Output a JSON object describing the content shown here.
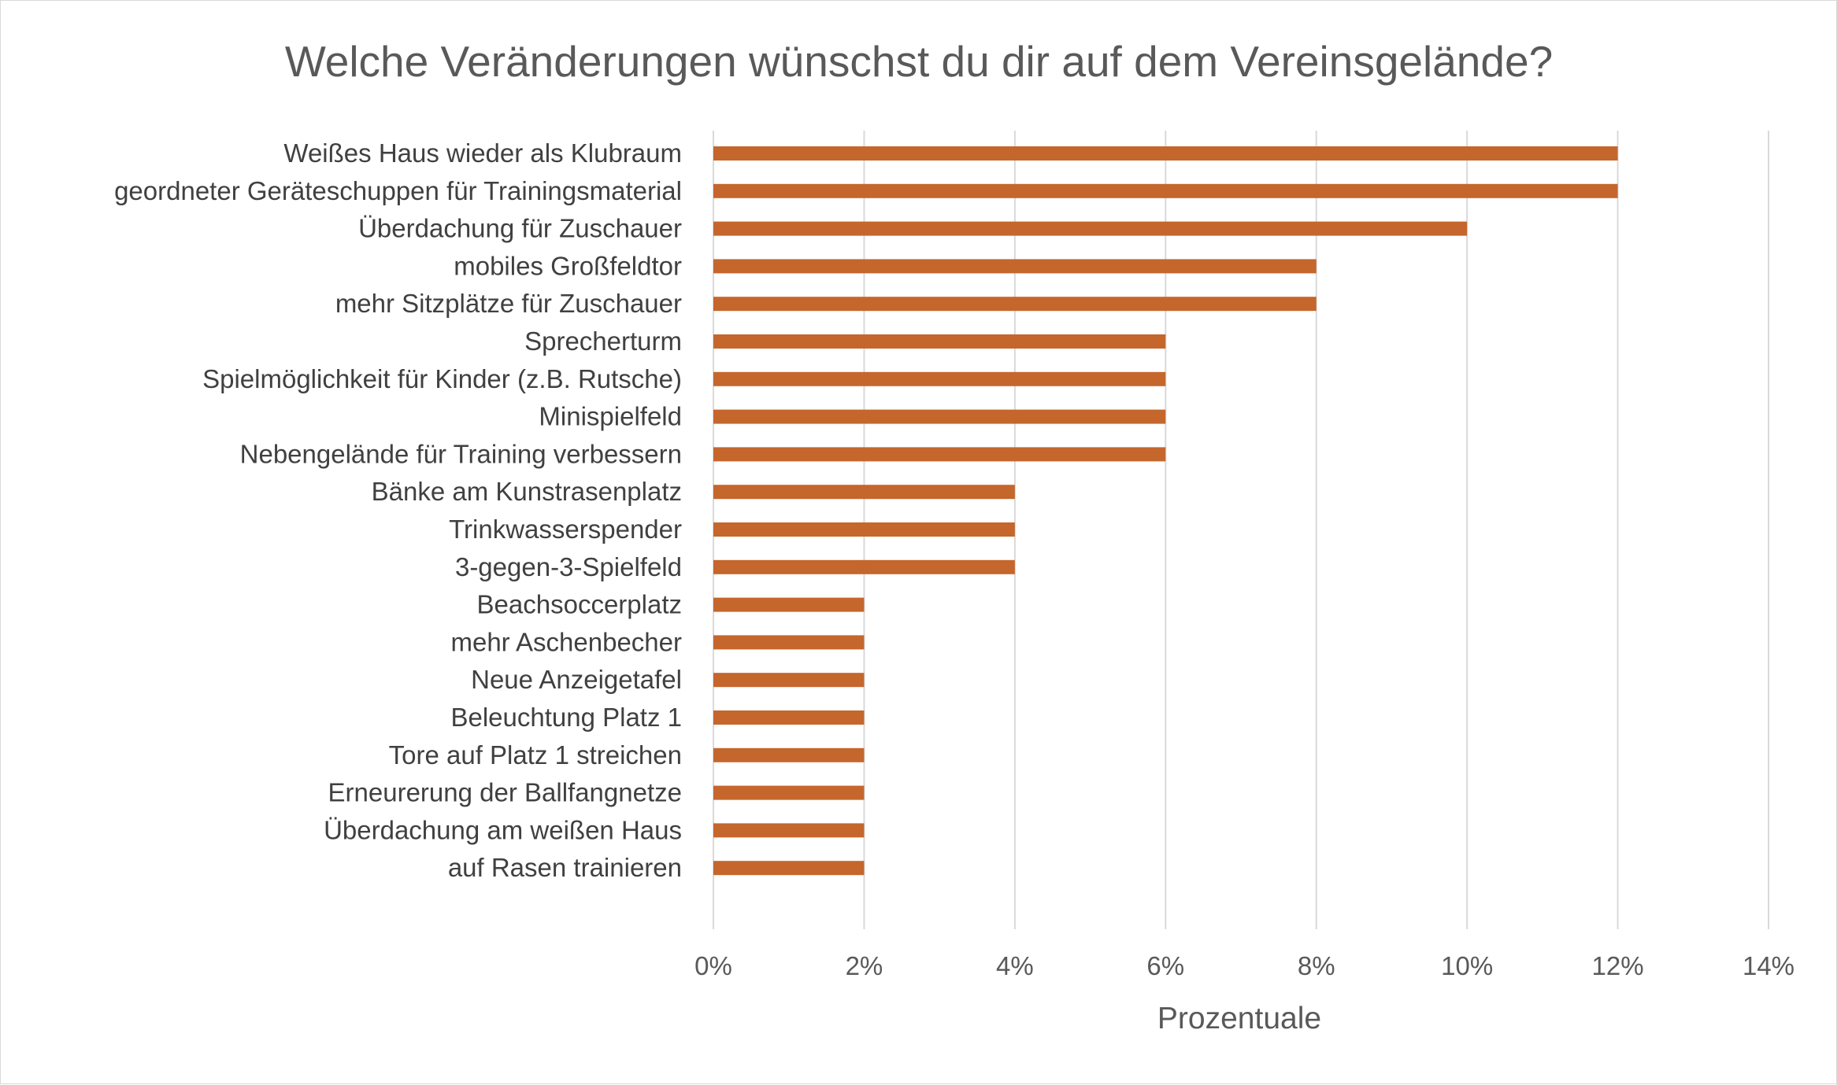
{
  "chart_data": {
    "type": "bar",
    "orientation": "horizontal",
    "title": "Welche Veränderungen wünschst du dir auf dem Vereinsgelände?",
    "xlabel": "Prozentuale",
    "ylabel": "",
    "xlim": [
      0,
      14
    ],
    "x_ticks": [
      0,
      2,
      4,
      6,
      8,
      10,
      12,
      14
    ],
    "x_tick_labels": [
      "0%",
      "2%",
      "4%",
      "6%",
      "8%",
      "10%",
      "12%",
      "14%"
    ],
    "grid": true,
    "legend": "none",
    "bar_color": "#c5662c",
    "grid_color": "#d9d9d9",
    "categories": [
      "Weißes Haus wieder als Klubraum",
      "geordneter Geräteschuppen für Trainingsmaterial",
      "Überdachung für Zuschauer",
      "mobiles Großfeldtor",
      "mehr Sitzplätze für Zuschauer",
      "Sprecherturm",
      "Spielmöglichkeit für Kinder (z.B. Rutsche)",
      "Minispielfeld",
      "Nebengelände für Training verbessern",
      "Bänke am Kunstrasenplatz",
      "Trinkwasserspender",
      "3-gegen-3-Spielfeld",
      "Beachsoccerplatz",
      "mehr Aschenbecher",
      "Neue Anzeigetafel",
      "Beleuchtung Platz 1",
      "Tore auf Platz 1 streichen",
      "Erneurerung der Ballfangnetze",
      "Überdachung am weißen Haus",
      "auf Rasen trainieren"
    ],
    "values": [
      12,
      12,
      10,
      8,
      8,
      6,
      6,
      6,
      6,
      4,
      4,
      4,
      2,
      2,
      2,
      2,
      2,
      2,
      2,
      2
    ]
  }
}
